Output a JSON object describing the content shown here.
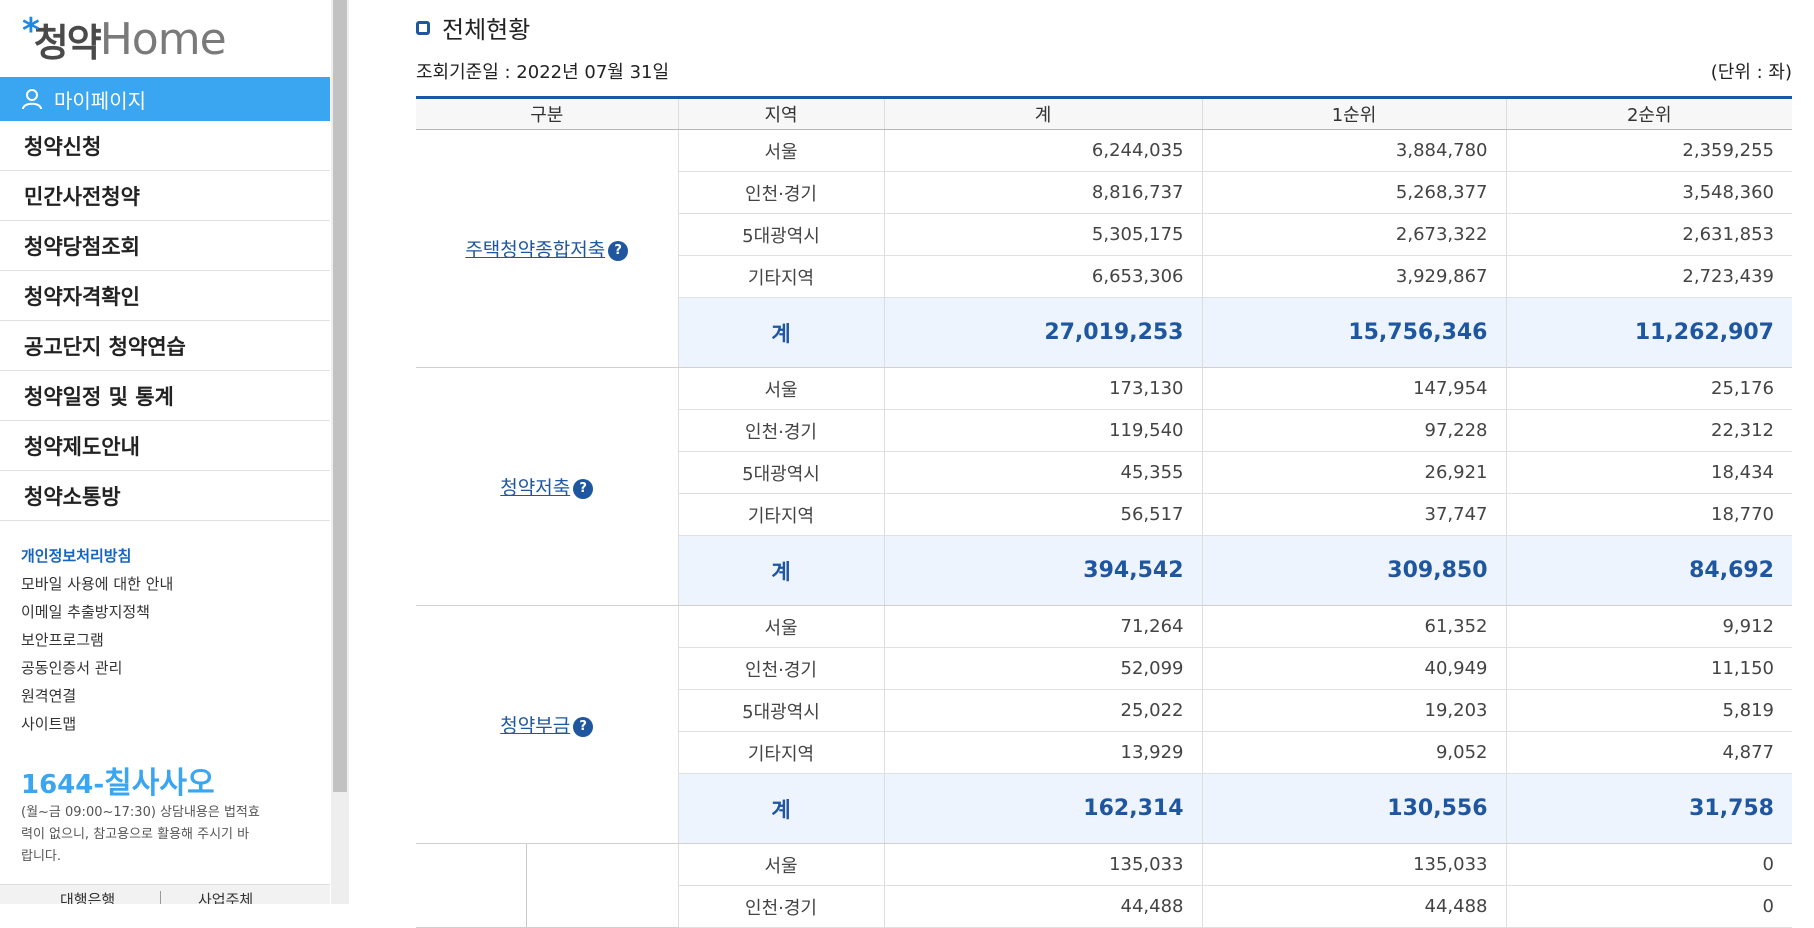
{
  "logo": {
    "star": "*",
    "kr": "청약",
    "en": "Home"
  },
  "sidebar": {
    "mypage_label": "마이페이지",
    "menu": [
      "청약신청",
      "민간사전청약",
      "청약당첨조회",
      "청약자격확인",
      "공고단지 청약연습",
      "청약일정 및 통계",
      "청약제도안내",
      "청약소통방"
    ],
    "links": [
      "개인정보처리방침",
      "모바일 사용에 대한 안내",
      "이메일 추출방지정책",
      "보안프로그램",
      "공동인증서 관리",
      "원격연결",
      "사이트맵"
    ],
    "phone_prefix": "1644-",
    "phone_word": "칠사사오",
    "hours_text": "(월~금 09:00~17:30) 상담내용은 법적효력이 없으니, 참고용으로 활용해 주시기 바랍니다.",
    "bottom_tabs": [
      "대행은행",
      "사업주체"
    ]
  },
  "main": {
    "title": "전체현황",
    "basis": "조회기준일 : 2022년 07월 31일",
    "unit": "(단위 : 좌)",
    "headers": [
      "구분",
      "지역",
      "계",
      "1순위",
      "2순위"
    ],
    "groups": [
      {
        "category": "주택청약종합저축",
        "help": "?",
        "rows": [
          [
            "서울",
            "6,244,035",
            "3,884,780",
            "2,359,255"
          ],
          [
            "인천·경기",
            "8,816,737",
            "5,268,377",
            "3,548,360"
          ],
          [
            "5대광역시",
            "5,305,175",
            "2,673,322",
            "2,631,853"
          ],
          [
            "기타지역",
            "6,653,306",
            "3,929,867",
            "2,723,439"
          ]
        ],
        "total": [
          "계",
          "27,019,253",
          "15,756,346",
          "11,262,907"
        ]
      },
      {
        "category": "청약저축",
        "help": "?",
        "rows": [
          [
            "서울",
            "173,130",
            "147,954",
            "25,176"
          ],
          [
            "인천·경기",
            "119,540",
            "97,228",
            "22,312"
          ],
          [
            "5대광역시",
            "45,355",
            "26,921",
            "18,434"
          ],
          [
            "기타지역",
            "56,517",
            "37,747",
            "18,770"
          ]
        ],
        "total": [
          "계",
          "394,542",
          "309,850",
          "84,692"
        ]
      },
      {
        "category": "청약부금",
        "help": "?",
        "rows": [
          [
            "서울",
            "71,264",
            "61,352",
            "9,912"
          ],
          [
            "인천·경기",
            "52,099",
            "40,949",
            "11,150"
          ],
          [
            "5대광역시",
            "25,022",
            "19,203",
            "5,819"
          ],
          [
            "기타지역",
            "13,929",
            "9,052",
            "4,877"
          ]
        ],
        "total": [
          "계",
          "162,314",
          "130,556",
          "31,758"
        ]
      },
      {
        "category": "",
        "help": "",
        "rows": [
          [
            "서울",
            "135,033",
            "135,033",
            "0"
          ],
          [
            "인천·경기",
            "44,488",
            "44,488",
            "0"
          ]
        ],
        "total": null
      }
    ]
  },
  "colors": {
    "accent": "#3aa5f0",
    "navy": "#1e56a0",
    "total_bg": "#eef4fd"
  }
}
